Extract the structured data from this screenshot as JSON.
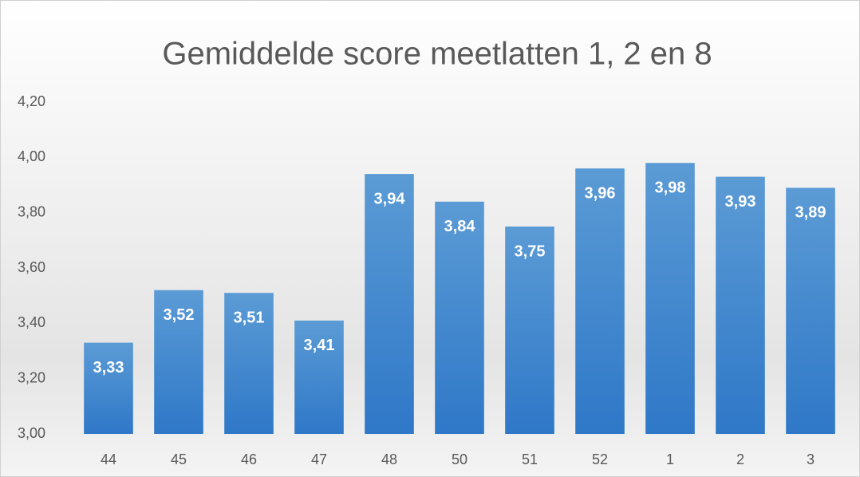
{
  "chart_data": {
    "type": "bar",
    "title": "Gemiddelde score meetlatten 1, 2 en 8",
    "categories": [
      "44",
      "45",
      "46",
      "47",
      "48",
      "50",
      "51",
      "52",
      "1",
      "2",
      "3"
    ],
    "values": [
      3.33,
      3.52,
      3.51,
      3.41,
      3.94,
      3.84,
      3.75,
      3.96,
      3.98,
      3.93,
      3.89
    ],
    "value_labels": [
      "3,33",
      "3,52",
      "3,51",
      "3,41",
      "3,94",
      "3,84",
      "3,75",
      "3,96",
      "3,98",
      "3,93",
      "3,89"
    ],
    "color": "#4a8fd6",
    "ylim": [
      3.0,
      4.2
    ],
    "yticks": [
      {
        "value": 3.0,
        "label": "3,00"
      },
      {
        "value": 3.2,
        "label": "3,20"
      },
      {
        "value": 3.4,
        "label": "3,40"
      },
      {
        "value": 3.6,
        "label": "3,60"
      },
      {
        "value": 3.8,
        "label": "3,80"
      },
      {
        "value": 4.0,
        "label": "4,00"
      },
      {
        "value": 4.2,
        "label": "4,20"
      }
    ],
    "grid": false
  }
}
